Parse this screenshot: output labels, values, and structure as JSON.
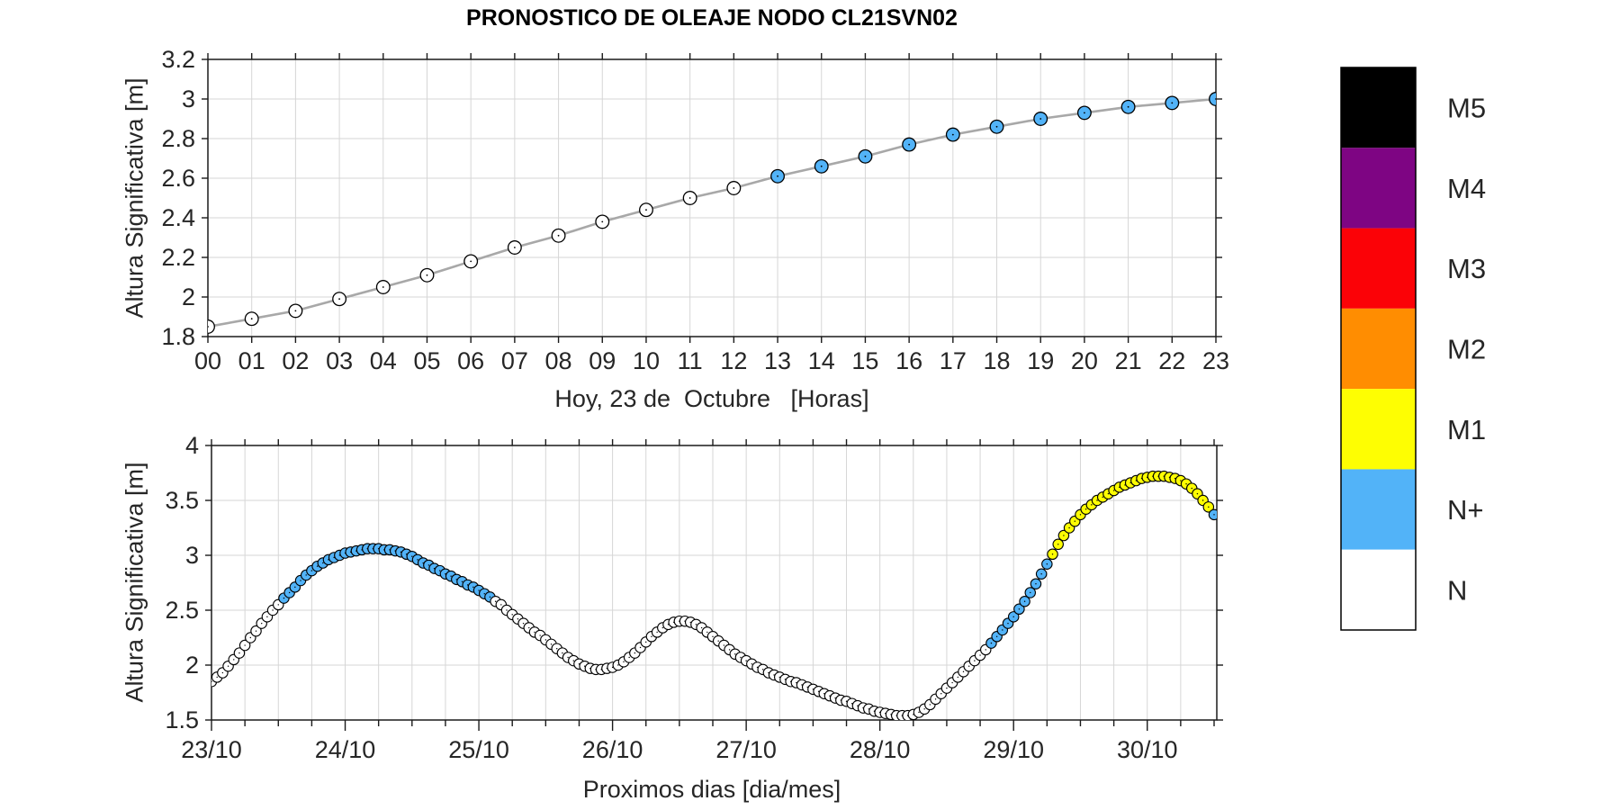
{
  "title": "PRONOSTICO DE OLEAJE NODO CL21SVN02",
  "node_id": "CL21SVN02",
  "legend": {
    "entries": [
      {
        "label": "M5",
        "color": "#000000"
      },
      {
        "label": "M4",
        "color": "#7E0583"
      },
      {
        "label": "M3",
        "color": "#FB0207"
      },
      {
        "label": "M2",
        "color": "#FF8D01"
      },
      {
        "label": "M1",
        "color": "#FEFE02"
      },
      {
        "label": "N+",
        "color": "#52B3F8"
      },
      {
        "label": "N",
        "color": "#FFFFFF"
      }
    ]
  },
  "style_colors": {
    "grid": "#d6d6d6",
    "axis": "#1a1a1a",
    "tick_text": "#262626",
    "series_line": "#a8a8a8",
    "marker_edge": "#000000"
  },
  "chart_data": [
    {
      "type": "line",
      "name": "today-hourly-forecast",
      "xlabel": "Hoy, 23 de  Octubre   [Horas]",
      "ylabel": "Altura Significativa [m]",
      "ylim": [
        1.8,
        3.2
      ],
      "y_ticks": [
        1.8,
        2.0,
        2.2,
        2.4,
        2.6,
        2.8,
        3.0,
        3.2
      ],
      "y_tick_labels": [
        "1.8",
        "2",
        "2.2",
        "2.4",
        "2.6",
        "2.8",
        "3",
        "3.2"
      ],
      "x_tick_labels": [
        "00",
        "01",
        "02",
        "03",
        "04",
        "05",
        "06",
        "07",
        "08",
        "09",
        "10",
        "11",
        "12",
        "13",
        "14",
        "15",
        "16",
        "17",
        "18",
        "19",
        "20",
        "21",
        "22",
        "23"
      ],
      "grid": true,
      "legend_position": "right-outside",
      "values": [
        1.85,
        1.89,
        1.93,
        1.99,
        2.05,
        2.11,
        2.18,
        2.25,
        2.31,
        2.38,
        2.44,
        2.5,
        2.55,
        2.61,
        2.66,
        2.71,
        2.77,
        2.82,
        2.86,
        2.9,
        2.93,
        2.96,
        2.98,
        3.0
      ],
      "level_segments": [
        {
          "from": 0,
          "to": 12,
          "level": "N"
        },
        {
          "from": 13,
          "to": 23,
          "level": "N+"
        }
      ]
    },
    {
      "type": "line",
      "name": "next-days-hourly-forecast",
      "xlabel": "Proximos dias [dia/mes]",
      "ylabel": "Altura Significativa [m]",
      "ylim": [
        1.5,
        4.0
      ],
      "y_ticks": [
        1.5,
        2.0,
        2.5,
        3.0,
        3.5,
        4.0
      ],
      "y_tick_labels": [
        "1.5",
        "2",
        "2.5",
        "3",
        "3.5",
        "4"
      ],
      "x_tick_labels": [
        "23/10",
        "24/10",
        "25/10",
        "26/10",
        "27/10",
        "28/10",
        "29/10",
        "30/10"
      ],
      "points_per_day": 24,
      "minor_tick_hours": 6,
      "grid": true,
      "values": [
        1.85,
        1.89,
        1.93,
        1.99,
        2.05,
        2.11,
        2.18,
        2.25,
        2.31,
        2.38,
        2.44,
        2.5,
        2.55,
        2.61,
        2.66,
        2.71,
        2.77,
        2.82,
        2.86,
        2.9,
        2.93,
        2.96,
        2.98,
        3.0,
        3.02,
        3.03,
        3.04,
        3.05,
        3.06,
        3.06,
        3.06,
        3.05,
        3.05,
        3.04,
        3.03,
        3.01,
        2.99,
        2.96,
        2.93,
        2.91,
        2.88,
        2.86,
        2.83,
        2.81,
        2.78,
        2.76,
        2.73,
        2.71,
        2.68,
        2.65,
        2.62,
        2.58,
        2.55,
        2.5,
        2.46,
        2.42,
        2.38,
        2.34,
        2.3,
        2.27,
        2.23,
        2.19,
        2.15,
        2.11,
        2.07,
        2.04,
        2.01,
        1.99,
        1.97,
        1.96,
        1.96,
        1.97,
        1.98,
        2.0,
        2.03,
        2.07,
        2.11,
        2.16,
        2.21,
        2.26,
        2.3,
        2.34,
        2.37,
        2.39,
        2.4,
        2.4,
        2.39,
        2.37,
        2.34,
        2.3,
        2.26,
        2.22,
        2.18,
        2.14,
        2.1,
        2.07,
        2.04,
        2.01,
        1.98,
        1.96,
        1.93,
        1.91,
        1.89,
        1.87,
        1.85,
        1.84,
        1.82,
        1.8,
        1.78,
        1.76,
        1.74,
        1.72,
        1.7,
        1.68,
        1.67,
        1.65,
        1.63,
        1.61,
        1.6,
        1.58,
        1.57,
        1.56,
        1.55,
        1.54,
        1.54,
        1.54,
        1.55,
        1.57,
        1.6,
        1.64,
        1.69,
        1.74,
        1.79,
        1.84,
        1.89,
        1.94,
        1.99,
        2.04,
        2.09,
        2.14,
        2.2,
        2.26,
        2.32,
        2.38,
        2.44,
        2.51,
        2.58,
        2.66,
        2.74,
        2.83,
        2.92,
        3.01,
        3.1,
        3.18,
        3.25,
        3.31,
        3.37,
        3.42,
        3.46,
        3.5,
        3.53,
        3.56,
        3.59,
        3.62,
        3.64,
        3.66,
        3.68,
        3.7,
        3.71,
        3.72,
        3.72,
        3.72,
        3.71,
        3.7,
        3.68,
        3.65,
        3.61,
        3.56,
        3.5,
        3.44,
        3.37
      ],
      "level_segments": [
        {
          "from": 0,
          "to": 12,
          "level": "N"
        },
        {
          "from": 13,
          "to": 50,
          "level": "N+"
        },
        {
          "from": 51,
          "to": 139,
          "level": "N"
        },
        {
          "from": 140,
          "to": 150,
          "level": "N+"
        },
        {
          "from": 151,
          "to": 179,
          "level": "M1"
        },
        {
          "from": 180,
          "to": 180,
          "level": "N+"
        }
      ]
    }
  ]
}
